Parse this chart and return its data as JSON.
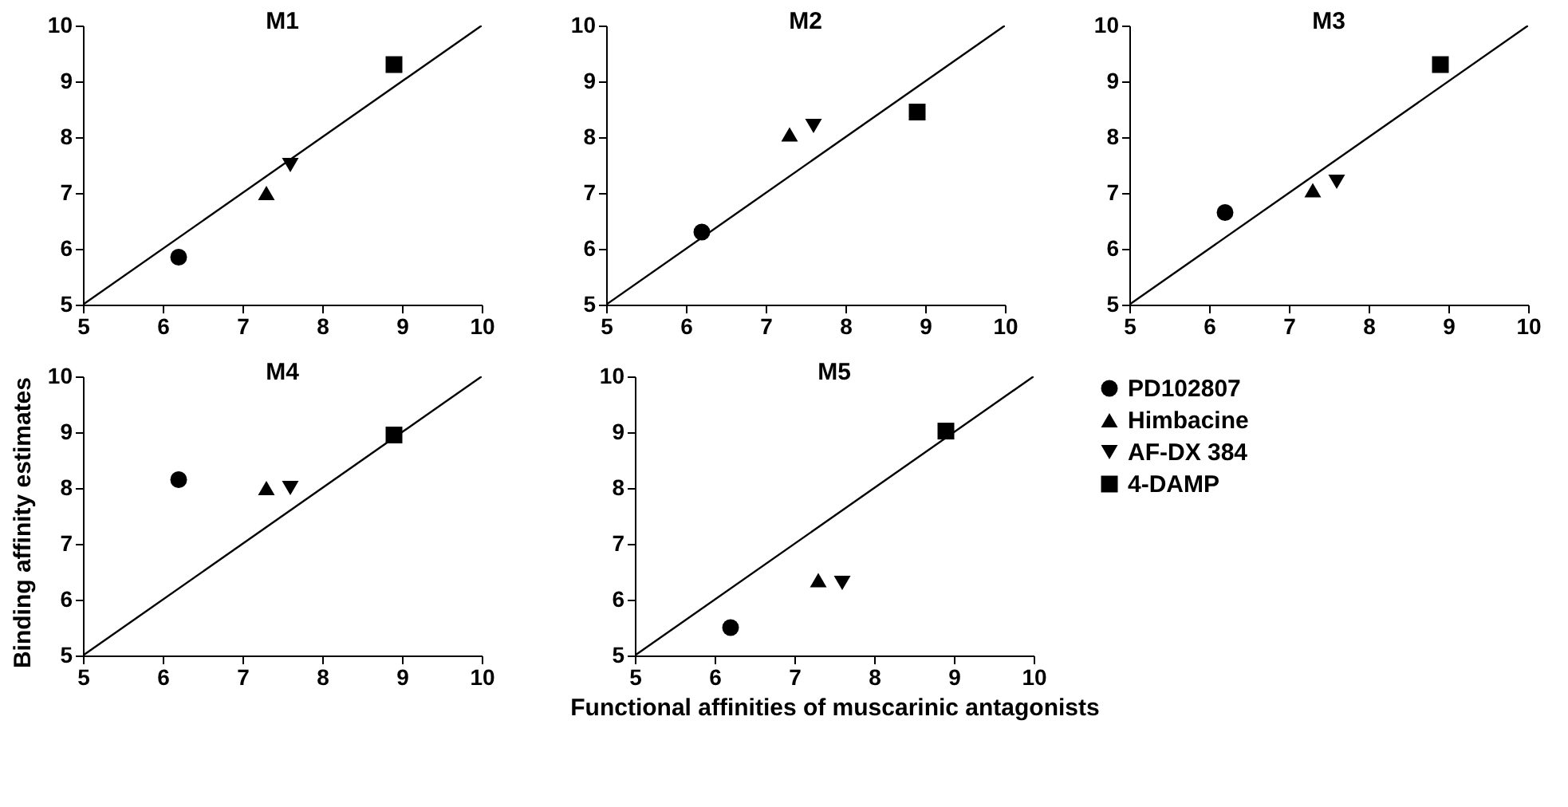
{
  "chart_data": [
    {
      "type": "scatter",
      "title": "M1",
      "xlim": [
        5,
        10
      ],
      "ylim": [
        5,
        10
      ],
      "xticks": [
        5,
        6,
        7,
        8,
        9,
        10
      ],
      "yticks": [
        5,
        6,
        7,
        8,
        9,
        10
      ],
      "grid": false,
      "legend": false,
      "series": [
        {
          "type": "line",
          "color": "#000000",
          "x": [
            5,
            10
          ],
          "values": [
            5,
            10
          ],
          "marker": "none"
        },
        {
          "color": "#000000",
          "marker": "circle",
          "x": [
            6.2
          ],
          "values": [
            5.85
          ]
        },
        {
          "color": "#000000",
          "marker": "triangle",
          "x": [
            7.3
          ],
          "values": [
            7.0
          ]
        },
        {
          "color": "#000000",
          "marker": "triangle-down",
          "x": [
            7.6
          ],
          "values": [
            7.5
          ]
        },
        {
          "color": "#000000",
          "marker": "square",
          "x": [
            8.9
          ],
          "values": [
            9.3
          ]
        }
      ]
    },
    {
      "type": "scatter",
      "title": "M2",
      "xlim": [
        5,
        10
      ],
      "ylim": [
        5,
        10
      ],
      "xticks": [
        5,
        6,
        7,
        8,
        9,
        10
      ],
      "yticks": [
        5,
        6,
        7,
        8,
        9,
        10
      ],
      "grid": false,
      "legend": false,
      "series": [
        {
          "type": "line",
          "color": "#000000",
          "x": [
            5,
            10
          ],
          "values": [
            5,
            10
          ],
          "marker": "none"
        },
        {
          "color": "#000000",
          "marker": "circle",
          "x": [
            6.2
          ],
          "values": [
            6.3
          ]
        },
        {
          "color": "#000000",
          "marker": "triangle",
          "x": [
            7.3
          ],
          "values": [
            8.05
          ]
        },
        {
          "color": "#000000",
          "marker": "triangle-down",
          "x": [
            7.6
          ],
          "values": [
            8.2
          ]
        },
        {
          "color": "#000000",
          "marker": "square",
          "x": [
            8.9
          ],
          "values": [
            8.45
          ]
        }
      ]
    },
    {
      "type": "scatter",
      "title": "M3",
      "xlim": [
        5,
        10
      ],
      "ylim": [
        5,
        10
      ],
      "xticks": [
        5,
        6,
        7,
        8,
        9,
        10
      ],
      "yticks": [
        5,
        6,
        7,
        8,
        9,
        10
      ],
      "grid": false,
      "legend": false,
      "series": [
        {
          "type": "line",
          "color": "#000000",
          "x": [
            5,
            10
          ],
          "values": [
            5,
            10
          ],
          "marker": "none"
        },
        {
          "color": "#000000",
          "marker": "circle",
          "x": [
            6.2
          ],
          "values": [
            6.65
          ]
        },
        {
          "color": "#000000",
          "marker": "triangle",
          "x": [
            7.3
          ],
          "values": [
            7.05
          ]
        },
        {
          "color": "#000000",
          "marker": "triangle-down",
          "x": [
            7.6
          ],
          "values": [
            7.2
          ]
        },
        {
          "color": "#000000",
          "marker": "square",
          "x": [
            8.9
          ],
          "values": [
            9.3
          ]
        }
      ]
    },
    {
      "type": "scatter",
      "title": "M4",
      "ylabel": "Binding affinity estimates",
      "xlim": [
        5,
        10
      ],
      "ylim": [
        5,
        10
      ],
      "xticks": [
        5,
        6,
        7,
        8,
        9,
        10
      ],
      "yticks": [
        5,
        6,
        7,
        8,
        9,
        10
      ],
      "grid": false,
      "legend": false,
      "series": [
        {
          "type": "line",
          "color": "#000000",
          "x": [
            5,
            10
          ],
          "values": [
            5,
            10
          ],
          "marker": "none"
        },
        {
          "color": "#000000",
          "marker": "circle",
          "x": [
            6.2
          ],
          "values": [
            8.15
          ]
        },
        {
          "color": "#000000",
          "marker": "triangle",
          "x": [
            7.3
          ],
          "values": [
            8.0
          ]
        },
        {
          "color": "#000000",
          "marker": "triangle-down",
          "x": [
            7.6
          ],
          "values": [
            8.0
          ]
        },
        {
          "color": "#000000",
          "marker": "square",
          "x": [
            8.9
          ],
          "values": [
            8.95
          ]
        }
      ]
    },
    {
      "type": "scatter",
      "title": "M5",
      "xlabel": "Functional affinities of muscarinic antagonists",
      "xlim": [
        5,
        10
      ],
      "ylim": [
        5,
        10
      ],
      "xticks": [
        5,
        6,
        7,
        8,
        9,
        10
      ],
      "yticks": [
        5,
        6,
        7,
        8,
        9,
        10
      ],
      "grid": false,
      "legend": "right",
      "series": [
        {
          "type": "line",
          "color": "#000000",
          "x": [
            5,
            10
          ],
          "values": [
            5,
            10
          ],
          "marker": "none"
        },
        {
          "name": "PD102807",
          "color": "#000000",
          "marker": "circle",
          "x": [
            6.2
          ],
          "values": [
            5.5
          ]
        },
        {
          "name": "Himbacine",
          "color": "#000000",
          "marker": "triangle",
          "x": [
            7.3
          ],
          "values": [
            6.35
          ]
        },
        {
          "name": "AF-DX 384",
          "color": "#000000",
          "marker": "triangle-down",
          "x": [
            7.6
          ],
          "values": [
            6.3
          ]
        },
        {
          "name": "4-DAMP",
          "color": "#000000",
          "marker": "square",
          "x": [
            8.9
          ],
          "values": [
            9.02
          ]
        }
      ]
    }
  ]
}
